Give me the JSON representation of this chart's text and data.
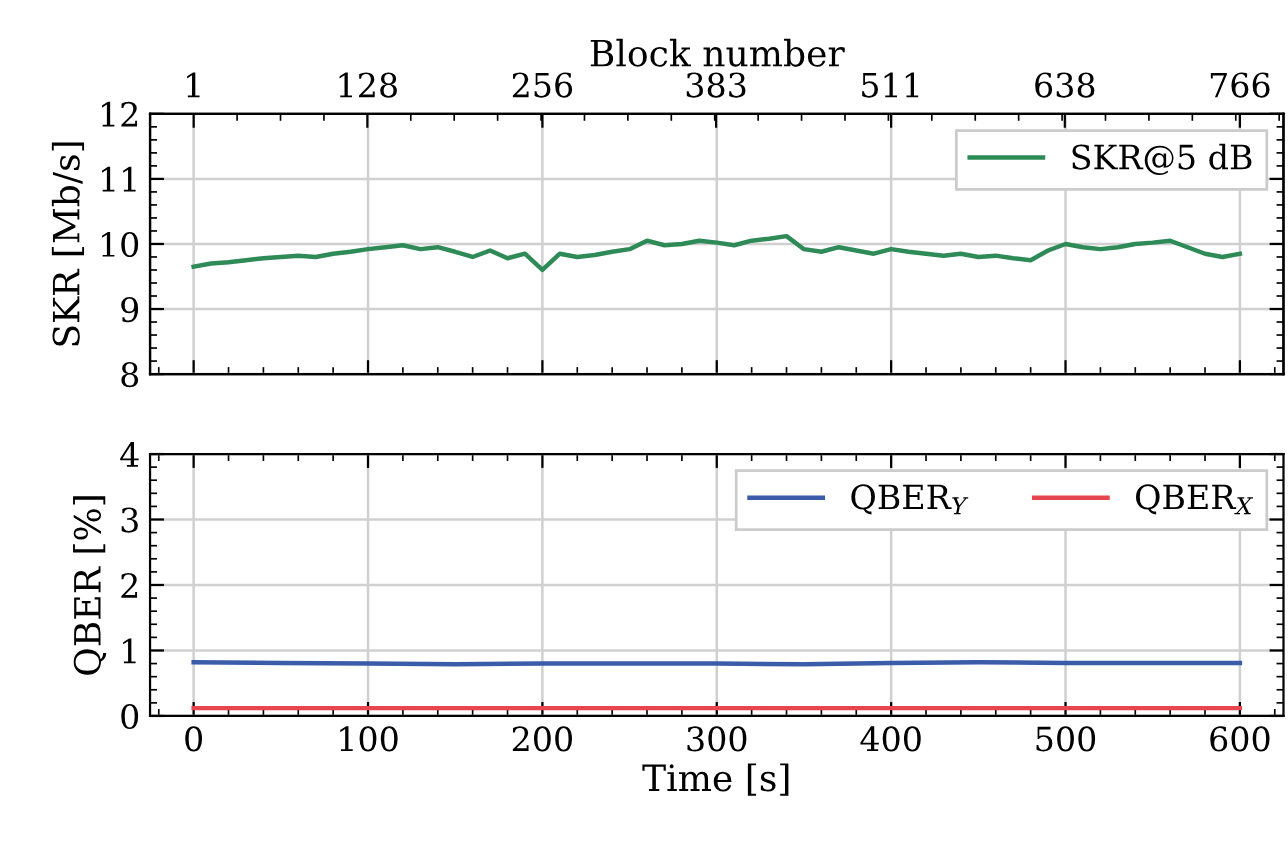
{
  "chart_data": [
    {
      "type": "line",
      "ylabel": "SKR [Mb/s]",
      "x2label": "Block number",
      "xlim": [
        -25,
        625
      ],
      "xticks": [
        0,
        100,
        200,
        300,
        400,
        500,
        600
      ],
      "x2lim": [
        -30.9,
        797.9
      ],
      "x2ticks": [
        1,
        128,
        256,
        383,
        511,
        638,
        766
      ],
      "ylim": [
        8,
        12
      ],
      "yticks": [
        8,
        9,
        10,
        11,
        12
      ],
      "tick_labels": "y",
      "grid": true,
      "legend": "top right",
      "x": [
        0,
        10,
        20,
        30,
        40,
        50,
        60,
        70,
        80,
        90,
        100,
        110,
        120,
        130,
        140,
        150,
        160,
        170,
        180,
        190,
        200,
        210,
        220,
        230,
        240,
        250,
        260,
        270,
        280,
        290,
        300,
        310,
        320,
        330,
        340,
        350,
        360,
        370,
        380,
        390,
        400,
        410,
        420,
        430,
        440,
        450,
        460,
        470,
        480,
        490,
        500,
        510,
        520,
        530,
        540,
        550,
        560,
        570,
        580,
        590,
        600
      ],
      "series": [
        {
          "name": "SKR@5 dB",
          "color": "#2e8b57",
          "values": [
            9.65,
            9.7,
            9.72,
            9.75,
            9.78,
            9.8,
            9.82,
            9.8,
            9.85,
            9.88,
            9.92,
            9.95,
            9.98,
            9.92,
            9.95,
            9.88,
            9.8,
            9.9,
            9.78,
            9.85,
            9.6,
            9.85,
            9.8,
            9.83,
            9.88,
            9.92,
            10.05,
            9.98,
            10.0,
            10.05,
            10.02,
            9.98,
            10.05,
            10.08,
            10.12,
            9.92,
            9.88,
            9.95,
            9.9,
            9.85,
            9.92,
            9.88,
            9.85,
            9.82,
            9.85,
            9.8,
            9.82,
            9.78,
            9.75,
            9.9,
            10.0,
            9.95,
            9.92,
            9.95,
            10.0,
            10.02,
            10.05,
            9.95,
            9.85,
            9.8,
            9.85
          ]
        }
      ]
    },
    {
      "type": "line",
      "xlabel": "Time [s]",
      "ylabel": "QBER [%]",
      "xlim": [
        -25,
        625
      ],
      "xticks": [
        0,
        100,
        200,
        300,
        400,
        500,
        600
      ],
      "ylim": [
        0,
        4
      ],
      "yticks": [
        0,
        1,
        2,
        3,
        4
      ],
      "grid": true,
      "legend": "top right",
      "x": [
        0,
        50,
        100,
        150,
        200,
        250,
        300,
        350,
        400,
        450,
        500,
        550,
        600
      ],
      "series": [
        {
          "name": "QBER$_{Y}$",
          "color": "#3b5ca8",
          "values": [
            0.82,
            0.81,
            0.8,
            0.79,
            0.8,
            0.8,
            0.8,
            0.79,
            0.81,
            0.82,
            0.81,
            0.81,
            0.81
          ]
        },
        {
          "name": "QBER$_{X}$",
          "color": "#e8464e",
          "values": [
            0.12,
            0.12,
            0.12,
            0.12,
            0.12,
            0.12,
            0.12,
            0.12,
            0.12,
            0.12,
            0.12,
            0.12,
            0.12
          ]
        }
      ]
    }
  ]
}
